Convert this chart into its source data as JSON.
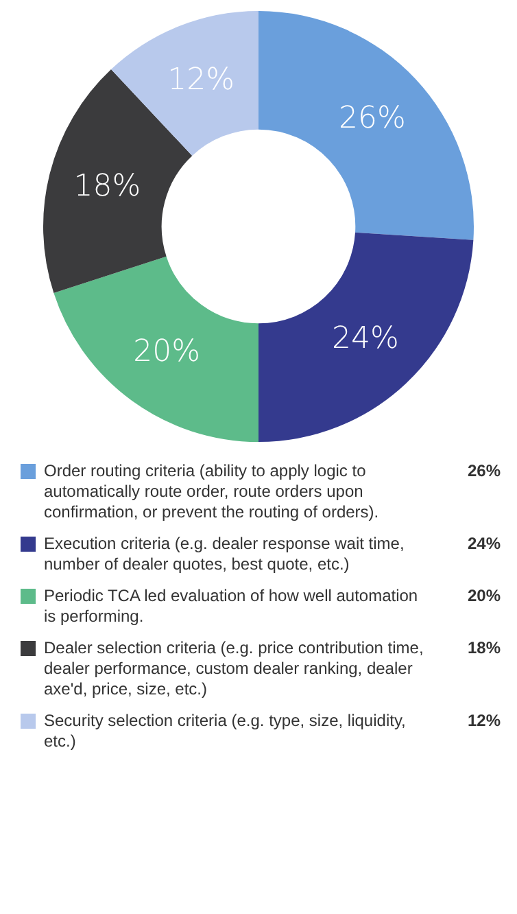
{
  "chart_data": {
    "type": "donut",
    "categories": [
      "Order routing criteria (ability to apply logic to automatically route order, route orders upon confirmation, or prevent the routing of orders).",
      "Execution criteria (e.g. dealer response wait time, number of dealer quotes, best quote, etc.)",
      "Periodic TCA led evaluation of how well automation is performing.",
      "Dealer selection criteria (e.g. price contribution time, dealer performance, custom dealer ranking, dealer axe'd, price, size, etc.)",
      "Security selection criteria (e.g. type, size, liquidity, etc.)"
    ],
    "values": [
      26,
      24,
      20,
      18,
      12
    ],
    "colors": [
      "#6a9fdc",
      "#343a8e",
      "#5dbb8a",
      "#3b3b3d",
      "#b8c9ec"
    ],
    "value_labels": [
      "26%",
      "24%",
      "20%",
      "18%",
      "12%"
    ],
    "legend": "bottom"
  }
}
